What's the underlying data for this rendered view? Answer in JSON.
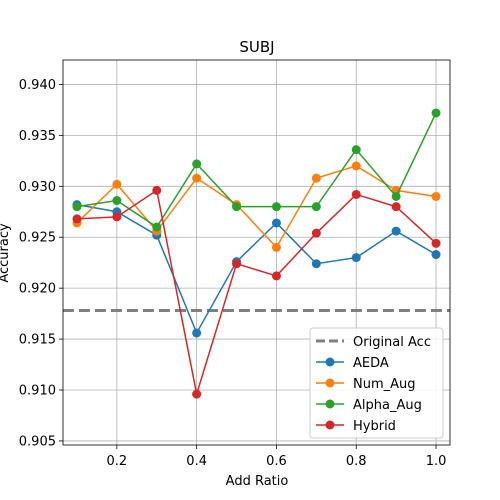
{
  "chart_data": {
    "type": "line",
    "title": "SUBJ",
    "xlabel": "Add Ratio",
    "ylabel": "Accuracy",
    "x": [
      0.1,
      0.2,
      0.3,
      0.4,
      0.5,
      0.6,
      0.7,
      0.8,
      0.9,
      1.0
    ],
    "xlim": [
      0.065,
      1.035
    ],
    "ylim": [
      0.9046,
      0.9424
    ],
    "xticks": [
      0.2,
      0.4,
      0.6,
      0.8,
      1.0
    ],
    "xtick_labels": [
      "0.2",
      "0.4",
      "0.6",
      "0.8",
      "1.0"
    ],
    "yticks": [
      0.905,
      0.91,
      0.915,
      0.92,
      0.925,
      0.93,
      0.935,
      0.94
    ],
    "ytick_labels": [
      "0.905",
      "0.910",
      "0.915",
      "0.920",
      "0.925",
      "0.930",
      "0.935",
      "0.940"
    ],
    "grid": true,
    "legend_position": "lower-right",
    "reference_line": {
      "name": "Original Acc",
      "y": 0.9178,
      "color": "#808080",
      "style": "dashed"
    },
    "series": [
      {
        "name": "AEDA",
        "color": "#1f77b4",
        "values": [
          0.9282,
          0.9275,
          0.9252,
          0.9156,
          0.9226,
          0.9264,
          0.9224,
          0.923,
          0.9256,
          0.9233
        ]
      },
      {
        "name": "Num_Aug",
        "color": "#ff7f0e",
        "values": [
          0.9264,
          0.9302,
          0.9256,
          0.9308,
          0.9282,
          0.924,
          0.9308,
          0.932,
          0.9296,
          0.929
        ]
      },
      {
        "name": "Alpha_Aug",
        "color": "#2ca02c",
        "values": [
          0.928,
          0.9286,
          0.926,
          0.9322,
          0.928,
          0.928,
          0.928,
          0.9336,
          0.929,
          0.9372
        ]
      },
      {
        "name": "Hybrid",
        "color": "#d62728",
        "values": [
          0.9268,
          0.927,
          0.9296,
          0.9096,
          0.9224,
          0.9212,
          0.9254,
          0.9292,
          0.928,
          0.9244
        ]
      }
    ]
  }
}
